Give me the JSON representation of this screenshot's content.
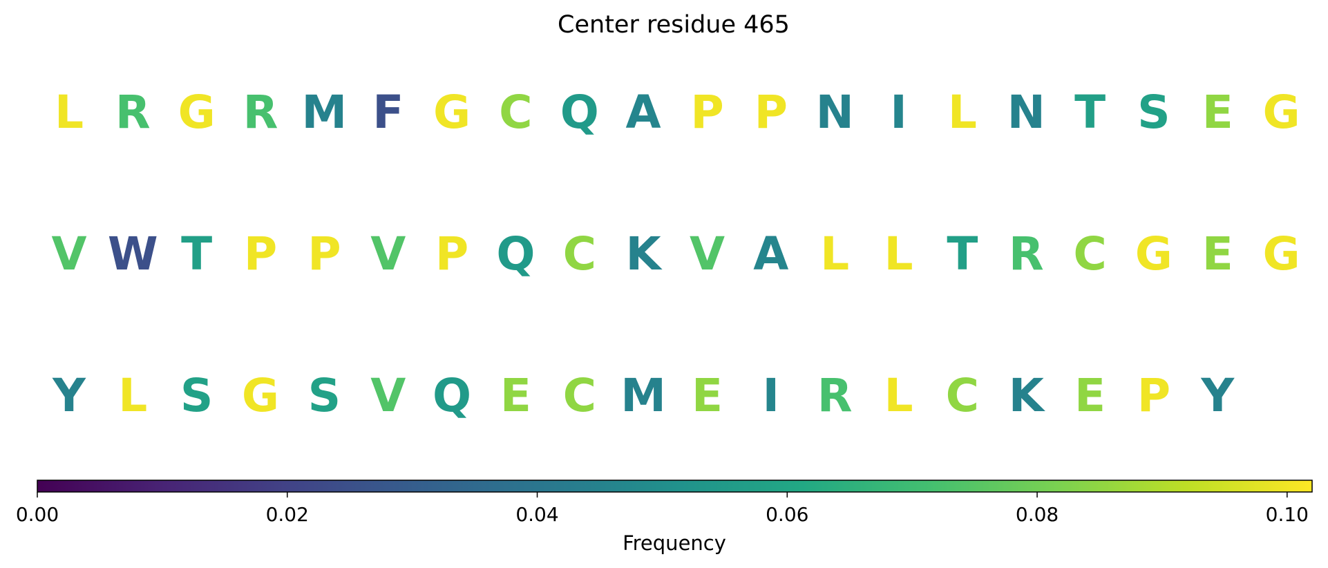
{
  "chart_data": {
    "type": "heatmap",
    "title": "Center residue 465",
    "rows": [
      {
        "residues": [
          "L",
          "R",
          "G",
          "R",
          "M",
          "F",
          "G",
          "C",
          "Q",
          "A",
          "P",
          "P",
          "N",
          "I",
          "L",
          "N",
          "T",
          "S",
          "E",
          "G"
        ],
        "frequencies": [
          0.1,
          0.072,
          0.1,
          0.072,
          0.045,
          0.025,
          0.1,
          0.085,
          0.055,
          0.046,
          0.1,
          0.1,
          0.045,
          0.046,
          0.1,
          0.045,
          0.057,
          0.058,
          0.085,
          0.1
        ]
      },
      {
        "residues": [
          "V",
          "W",
          "T",
          "P",
          "P",
          "V",
          "P",
          "Q",
          "C",
          "K",
          "V",
          "A",
          "L",
          "L",
          "T",
          "R",
          "C",
          "G",
          "E",
          "G"
        ],
        "frequencies": [
          0.074,
          0.025,
          0.057,
          0.1,
          0.1,
          0.074,
          0.1,
          0.055,
          0.085,
          0.045,
          0.074,
          0.046,
          0.1,
          0.1,
          0.057,
          0.072,
          0.085,
          0.1,
          0.085,
          0.1
        ]
      },
      {
        "residues": [
          "Y",
          "L",
          "S",
          "G",
          "S",
          "V",
          "Q",
          "E",
          "C",
          "M",
          "E",
          "I",
          "R",
          "L",
          "C",
          "K",
          "E",
          "P",
          "Y"
        ],
        "frequencies": [
          0.045,
          0.1,
          0.058,
          0.1,
          0.058,
          0.074,
          0.055,
          0.085,
          0.085,
          0.045,
          0.085,
          0.046,
          0.072,
          0.1,
          0.085,
          0.045,
          0.085,
          0.1,
          0.045
        ]
      }
    ],
    "colorbar": {
      "label": "Frequency",
      "colormap": "viridis",
      "range": [
        0,
        0.102
      ],
      "ticks": [
        0.0,
        0.02,
        0.04,
        0.06,
        0.08,
        0.1
      ],
      "tick_labels": [
        "0.00",
        "0.02",
        "0.04",
        "0.06",
        "0.08",
        "0.10"
      ]
    }
  }
}
